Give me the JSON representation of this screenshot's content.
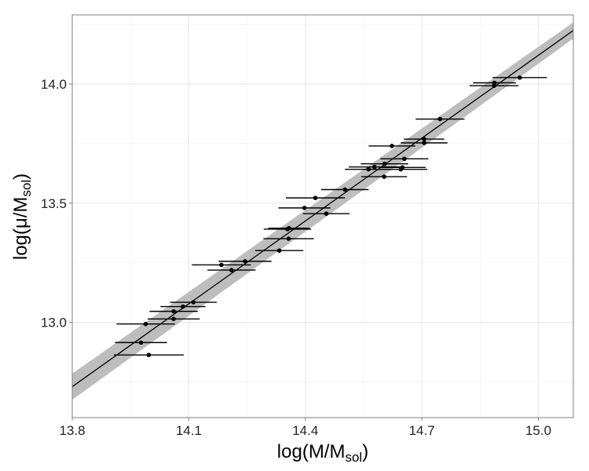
{
  "chart_data": {
    "type": "scatter",
    "title": "",
    "xlabel": {
      "main": "log(M/M",
      "sub": "sol",
      "end": ")"
    },
    "ylabel": {
      "main": "log(μ/M",
      "sub": "sol",
      "end": ")"
    },
    "xlim": [
      13.8,
      15.09
    ],
    "ylim": [
      12.6,
      14.29
    ],
    "x_ticks": [
      {
        "value": 13.8,
        "label": "13.8"
      },
      {
        "value": 14.1,
        "label": "14.1"
      },
      {
        "value": 14.4,
        "label": "14.4"
      },
      {
        "value": 14.7,
        "label": "14.7"
      },
      {
        "value": 15.0,
        "label": "15.0"
      }
    ],
    "y_ticks": [
      {
        "value": 13.0,
        "label": "13.0"
      },
      {
        "value": 13.5,
        "label": "13.5"
      },
      {
        "value": 14.0,
        "label": "14.0"
      }
    ],
    "grid": true,
    "fit": {
      "slope": 1.1588,
      "intercept": -3.2616,
      "band_half_width_left": 0.055,
      "band_half_width_right": 0.034,
      "line_color": "#000000",
      "band_color": "#bdbdbd"
    },
    "point_color": "#000000",
    "points": [
      {
        "x": 13.997,
        "y": 12.863,
        "xerr": 0.09
      },
      {
        "x": 13.977,
        "y": 12.915,
        "xerr": 0.067
      },
      {
        "x": 13.989,
        "y": 12.993,
        "xerr": 0.075
      },
      {
        "x": 14.061,
        "y": 13.014,
        "xerr": 0.067
      },
      {
        "x": 14.061,
        "y": 13.046,
        "xerr": 0.062
      },
      {
        "x": 14.085,
        "y": 13.066,
        "xerr": 0.058
      },
      {
        "x": 14.112,
        "y": 13.084,
        "xerr": 0.06
      },
      {
        "x": 14.184,
        "y": 13.241,
        "xerr": 0.076
      },
      {
        "x": 14.21,
        "y": 13.219,
        "xerr": 0.062
      },
      {
        "x": 14.245,
        "y": 13.256,
        "xerr": 0.068
      },
      {
        "x": 14.333,
        "y": 13.301,
        "xerr": 0.062
      },
      {
        "x": 14.357,
        "y": 13.351,
        "xerr": 0.065
      },
      {
        "x": 14.354,
        "y": 13.391,
        "xerr": 0.061
      },
      {
        "x": 14.358,
        "y": 13.395,
        "xerr": 0.053
      },
      {
        "x": 14.398,
        "y": 13.48,
        "xerr": 0.067
      },
      {
        "x": 14.454,
        "y": 13.456,
        "xerr": 0.06
      },
      {
        "x": 14.426,
        "y": 13.522,
        "xerr": 0.076
      },
      {
        "x": 14.502,
        "y": 13.557,
        "xerr": 0.061
      },
      {
        "x": 14.563,
        "y": 13.642,
        "xerr": 0.061
      },
      {
        "x": 14.578,
        "y": 13.652,
        "xerr": 0.066
      },
      {
        "x": 14.603,
        "y": 13.611,
        "xerr": 0.059
      },
      {
        "x": 14.604,
        "y": 13.665,
        "xerr": 0.061
      },
      {
        "x": 14.646,
        "y": 13.642,
        "xerr": 0.068
      },
      {
        "x": 14.65,
        "y": 13.65,
        "xerr": 0.06
      },
      {
        "x": 14.623,
        "y": 13.74,
        "xerr": 0.06
      },
      {
        "x": 14.655,
        "y": 13.686,
        "xerr": 0.062
      },
      {
        "x": 14.706,
        "y": 13.753,
        "xerr": 0.06
      },
      {
        "x": 14.706,
        "y": 13.769,
        "xerr": 0.052
      },
      {
        "x": 14.747,
        "y": 13.853,
        "xerr": 0.063
      },
      {
        "x": 14.886,
        "y": 13.993,
        "xerr": 0.063
      },
      {
        "x": 14.887,
        "y": 14.005,
        "xerr": 0.055
      },
      {
        "x": 14.952,
        "y": 14.027,
        "xerr": 0.07
      }
    ]
  }
}
